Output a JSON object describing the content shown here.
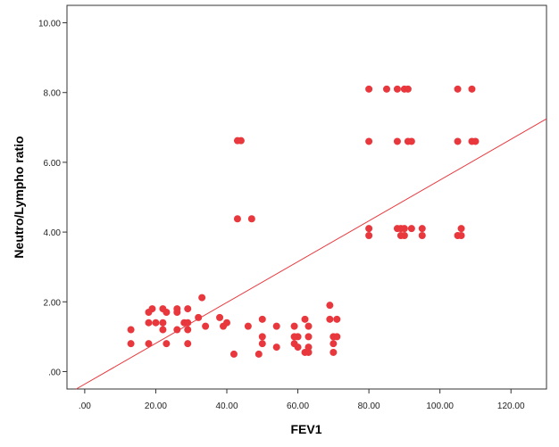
{
  "chart_data": {
    "type": "scatter",
    "xlabel": "FEV1",
    "ylabel": "Neutro/Lympho ratio",
    "xlim": [
      -5,
      130
    ],
    "ylim": [
      -0.5,
      10.5
    ],
    "x_ticks": [
      0,
      20,
      40,
      60,
      80,
      100,
      120
    ],
    "x_tick_labels": [
      ".00",
      "20.00",
      "40.00",
      "60.00",
      "80.00",
      "100.00",
      "120.00"
    ],
    "y_ticks": [
      0,
      2,
      4,
      6,
      8,
      10
    ],
    "y_tick_labels": [
      ".00",
      "2.00",
      "4.00",
      "6.00",
      "8.00",
      "10.00"
    ],
    "grid": false,
    "colors": {
      "points": "#e8383d",
      "fit_line": "#e8383d",
      "frame": "#333333"
    },
    "fit_line": {
      "intercept": -0.36,
      "slope": 0.0585
    },
    "series": [
      {
        "points": [
          [
            13,
            1.2
          ],
          [
            13,
            0.8
          ],
          [
            18,
            1.4
          ],
          [
            18,
            0.8
          ],
          [
            19,
            1.8
          ],
          [
            20,
            1.4
          ],
          [
            18,
            1.7
          ],
          [
            22,
            1.8
          ],
          [
            22,
            1.4
          ],
          [
            23,
            1.7
          ],
          [
            22,
            1.2
          ],
          [
            23,
            0.8
          ],
          [
            26,
            1.8
          ],
          [
            26,
            1.7
          ],
          [
            26,
            1.2
          ],
          [
            28,
            1.4
          ],
          [
            29,
            1.8
          ],
          [
            29,
            1.2
          ],
          [
            29,
            0.8
          ],
          [
            29,
            1.4
          ],
          [
            32,
            1.55
          ],
          [
            33,
            2.12
          ],
          [
            34,
            1.3
          ],
          [
            38,
            1.55
          ],
          [
            39,
            1.3
          ],
          [
            40,
            1.4
          ],
          [
            42,
            0.5
          ],
          [
            43,
            6.62
          ],
          [
            44,
            6.62
          ],
          [
            43,
            4.38
          ],
          [
            47,
            4.38
          ],
          [
            46,
            1.3
          ],
          [
            49,
            0.5
          ],
          [
            50,
            1.5
          ],
          [
            50,
            1.0
          ],
          [
            50,
            0.8
          ],
          [
            54,
            1.3
          ],
          [
            54,
            0.7
          ],
          [
            59,
            1.3
          ],
          [
            59,
            1.0
          ],
          [
            59,
            0.8
          ],
          [
            60,
            1.0
          ],
          [
            60,
            0.7
          ],
          [
            62,
            1.5
          ],
          [
            62,
            0.55
          ],
          [
            63,
            1.3
          ],
          [
            63,
            1.0
          ],
          [
            63,
            0.7
          ],
          [
            63,
            0.55
          ],
          [
            69,
            1.9
          ],
          [
            69,
            1.5
          ],
          [
            70,
            1.0
          ],
          [
            70,
            0.8
          ],
          [
            70,
            0.55
          ],
          [
            71,
            1.5
          ],
          [
            71,
            1.0
          ],
          [
            80,
            8.1
          ],
          [
            80,
            6.6
          ],
          [
            80,
            4.1
          ],
          [
            80,
            3.9
          ],
          [
            85,
            8.1
          ],
          [
            88,
            8.1
          ],
          [
            90,
            8.1
          ],
          [
            91,
            8.1
          ],
          [
            88,
            6.6
          ],
          [
            91,
            6.6
          ],
          [
            92,
            6.6
          ],
          [
            88,
            4.1
          ],
          [
            89,
            4.1
          ],
          [
            90,
            4.1
          ],
          [
            92,
            4.1
          ],
          [
            89,
            3.9
          ],
          [
            90,
            3.9
          ],
          [
            95,
            4.1
          ],
          [
            95,
            3.9
          ],
          [
            105,
            8.1
          ],
          [
            109,
            8.1
          ],
          [
            105,
            6.6
          ],
          [
            109,
            6.6
          ],
          [
            110,
            6.6
          ],
          [
            106,
            4.1
          ],
          [
            105,
            3.9
          ],
          [
            106,
            3.9
          ]
        ]
      }
    ]
  }
}
